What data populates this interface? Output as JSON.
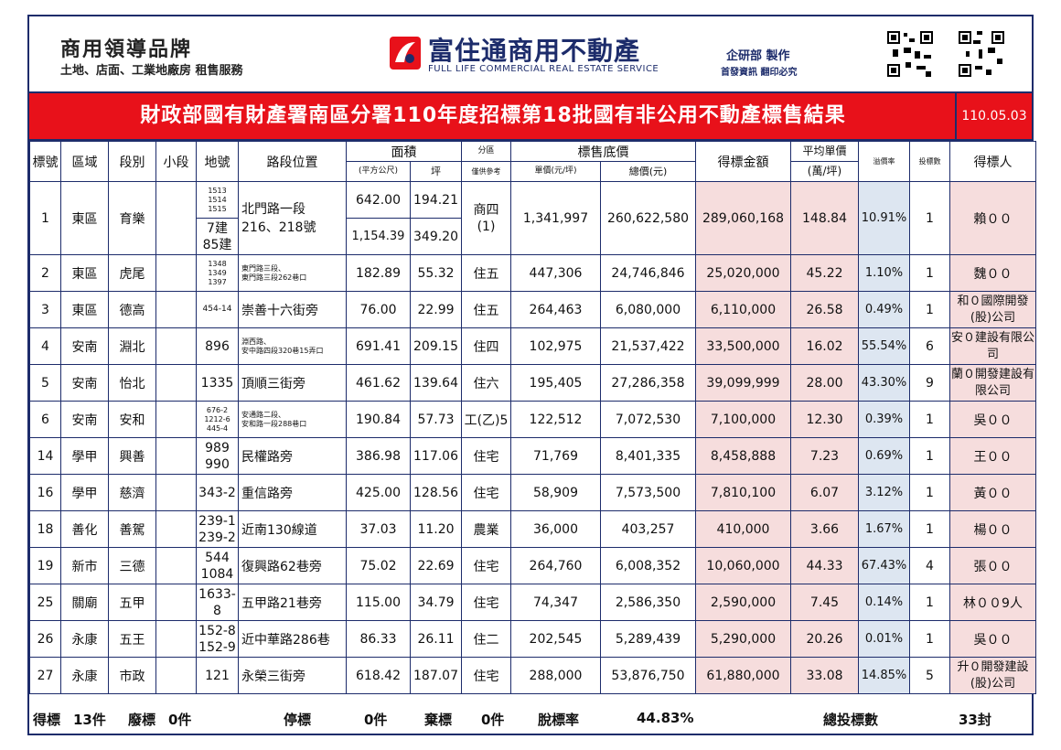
{
  "header": {
    "brand_title": "商用領導品牌",
    "brand_subtitle": "土地、店面、工業地廠房 租售服務",
    "company_name": "富住通商用不動產",
    "company_en": "FULL LIFE COMMERCIAL REAL ESTATE SERVICE",
    "dept_line1": "企研部 製作",
    "dept_line2": "首發資訊 翻印必究"
  },
  "title": {
    "text": "財政部國有財產署南區分署110年度招標第18批國有非公用不動產標售結果",
    "date": "110.05.03"
  },
  "columns": {
    "no": "標號",
    "district": "區域",
    "section": "段別",
    "subsection": "小段",
    "lot": "地號",
    "location": "路段位置",
    "area": "面積",
    "area_m2": "(平方公尺)",
    "area_ping": "坪",
    "zone": "分區",
    "zone_note": "僅供參考",
    "base_price": "標售底價",
    "unit_price": "單價(元/坪)",
    "total_price": "總價(元)",
    "winning_amount": "得標金額",
    "avg_price": "平均單價",
    "avg_price_unit": "(萬/坪)",
    "premium": "溢價率",
    "bids": "投標數",
    "winner": "得標人"
  },
  "rows": [
    {
      "no": "1",
      "district": "東區",
      "section": "育樂",
      "subsection": "",
      "lot": "1513\n1514\n1515",
      "lot2": "7建\n85建",
      "location": "北門路一段\n216、218號",
      "area_m2": "642.00",
      "area_ping": "194.21",
      "area_m2_b": "1,154.39",
      "area_ping_b": "349.20",
      "zone": "商四\n(1)",
      "unit_price": "1,341,997",
      "total_price": "260,622,580",
      "winning_amount": "289,060,168",
      "avg_price": "148.84",
      "premium": "10.91%",
      "bids": "1",
      "winner": "賴００"
    },
    {
      "no": "2",
      "district": "東區",
      "section": "虎尾",
      "subsection": "",
      "lot": "1348\n1349\n1397",
      "location": "東門路三段、\n東門路三段262巷口",
      "area_m2": "182.89",
      "area_ping": "55.32",
      "zone": "住五",
      "unit_price": "447,306",
      "total_price": "24,746,846",
      "winning_amount": "25,020,000",
      "avg_price": "45.22",
      "premium": "1.10%",
      "bids": "1",
      "winner": "魏００"
    },
    {
      "no": "3",
      "district": "東區",
      "section": "德高",
      "subsection": "",
      "lot": "454-14",
      "location": "崇善十六街旁",
      "area_m2": "76.00",
      "area_ping": "22.99",
      "zone": "住五",
      "unit_price": "264,463",
      "total_price": "6,080,000",
      "winning_amount": "6,110,000",
      "avg_price": "26.58",
      "premium": "0.49%",
      "bids": "1",
      "winner": "和０國際開發(股)公司"
    },
    {
      "no": "4",
      "district": "安南",
      "section": "淵北",
      "subsection": "",
      "lot": "896",
      "location": "淵西路、\n安中路四段320巷15弄口",
      "area_m2": "691.41",
      "area_ping": "209.15",
      "zone": "住四",
      "unit_price": "102,975",
      "total_price": "21,537,422",
      "winning_amount": "33,500,000",
      "avg_price": "16.02",
      "premium": "55.54%",
      "bids": "6",
      "winner": "安０建設有限公司"
    },
    {
      "no": "5",
      "district": "安南",
      "section": "怡北",
      "subsection": "",
      "lot": "1335",
      "location": "頂順三街旁",
      "area_m2": "461.62",
      "area_ping": "139.64",
      "zone": "住六",
      "unit_price": "195,405",
      "total_price": "27,286,358",
      "winning_amount": "39,099,999",
      "avg_price": "28.00",
      "premium": "43.30%",
      "bids": "9",
      "winner": "蘭０開發建設有限公司"
    },
    {
      "no": "6",
      "district": "安南",
      "section": "安和",
      "subsection": "",
      "lot": "676-2\n1212-6\n445-4",
      "location": "安通路二段、\n安和路一段288巷口",
      "area_m2": "190.84",
      "area_ping": "57.73",
      "zone": "工(乙)5",
      "unit_price": "122,512",
      "total_price": "7,072,530",
      "winning_amount": "7,100,000",
      "avg_price": "12.30",
      "premium": "0.39%",
      "bids": "1",
      "winner": "吳００"
    },
    {
      "no": "14",
      "district": "學甲",
      "section": "興善",
      "subsection": "",
      "lot": "989\n990",
      "location": "民權路旁",
      "area_m2": "386.98",
      "area_ping": "117.06",
      "zone": "住宅",
      "unit_price": "71,769",
      "total_price": "8,401,335",
      "winning_amount": "8,458,888",
      "avg_price": "7.23",
      "premium": "0.69%",
      "bids": "1",
      "winner": "王００"
    },
    {
      "no": "16",
      "district": "學甲",
      "section": "慈濟",
      "subsection": "",
      "lot": "343-2",
      "location": "重信路旁",
      "area_m2": "425.00",
      "area_ping": "128.56",
      "zone": "住宅",
      "unit_price": "58,909",
      "total_price": "7,573,500",
      "winning_amount": "7,810,100",
      "avg_price": "6.07",
      "premium": "3.12%",
      "bids": "1",
      "winner": "黃００"
    },
    {
      "no": "18",
      "district": "善化",
      "section": "善駕",
      "subsection": "",
      "lot": "239-1\n239-2",
      "location": "近南130線道",
      "area_m2": "37.03",
      "area_ping": "11.20",
      "zone": "農業",
      "unit_price": "36,000",
      "total_price": "403,257",
      "winning_amount": "410,000",
      "avg_price": "3.66",
      "premium": "1.67%",
      "bids": "1",
      "winner": "楊００"
    },
    {
      "no": "19",
      "district": "新市",
      "section": "三德",
      "subsection": "",
      "lot": "544\n1084",
      "location": "復興路62巷旁",
      "area_m2": "75.02",
      "area_ping": "22.69",
      "zone": "住宅",
      "unit_price": "264,760",
      "total_price": "6,008,352",
      "winning_amount": "10,060,000",
      "avg_price": "44.33",
      "premium": "67.43%",
      "bids": "4",
      "winner": "張００"
    },
    {
      "no": "25",
      "district": "關廟",
      "section": "五甲",
      "subsection": "",
      "lot": "1633-8",
      "location": "五甲路21巷旁",
      "area_m2": "115.00",
      "area_ping": "34.79",
      "zone": "住宅",
      "unit_price": "74,347",
      "total_price": "2,586,350",
      "winning_amount": "2,590,000",
      "avg_price": "7.45",
      "premium": "0.14%",
      "bids": "1",
      "winner": "林００9人"
    },
    {
      "no": "26",
      "district": "永康",
      "section": "五王",
      "subsection": "",
      "lot": "152-8\n152-9",
      "location": "近中華路286巷",
      "area_m2": "86.33",
      "area_ping": "26.11",
      "zone": "住二",
      "unit_price": "202,545",
      "total_price": "5,289,439",
      "winning_amount": "5,290,000",
      "avg_price": "20.26",
      "premium": "0.01%",
      "bids": "1",
      "winner": "吳００"
    },
    {
      "no": "27",
      "district": "永康",
      "section": "市政",
      "subsection": "",
      "lot": "121",
      "location": "永榮三街旁",
      "area_m2": "618.42",
      "area_ping": "187.07",
      "zone": "住宅",
      "unit_price": "288,000",
      "total_price": "53,876,750",
      "winning_amount": "61,880,000",
      "avg_price": "33.08",
      "premium": "14.85%",
      "bids": "5",
      "winner": "升０開發建設(股)公司"
    }
  ],
  "footer": {
    "won_label": "得標",
    "won_value": "13件",
    "void_label": "廢標",
    "void_value": "0件",
    "stopped_label": "停標",
    "stopped_value": "0件",
    "abandoned_label": "棄標",
    "abandoned_value": "0件",
    "sold_rate_label": "脫標率",
    "sold_rate_value": "44.83%",
    "total_bids_label": "總投標數",
    "total_bids_value": "33封"
  },
  "colors": {
    "accent_red": "#e8111a",
    "navy": "#1d2c6b",
    "pink_col": "#f6dddd",
    "blue_col": "#dde6f1"
  }
}
